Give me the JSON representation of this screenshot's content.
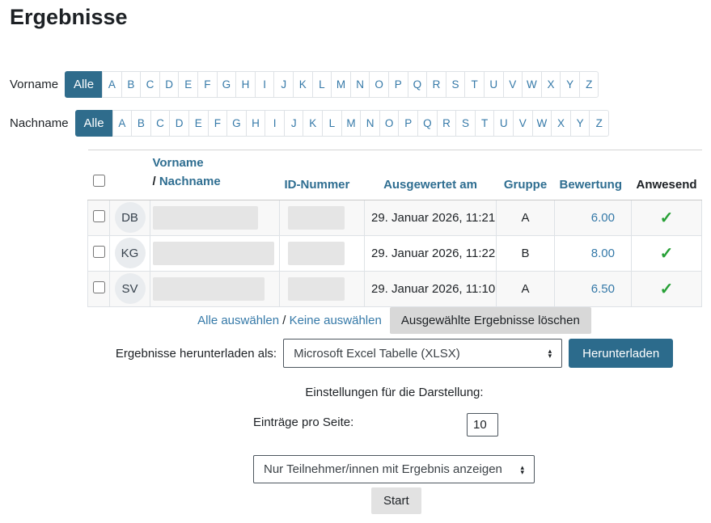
{
  "page": {
    "title": "Ergebnisse"
  },
  "colors": {
    "accent_teal": "#2f6c8c",
    "header_link": "#2f6e91",
    "link_blue": "#3579a8",
    "check_green": "#27a036",
    "row_stripe": "#f8f8f8",
    "button_gray": "#d8d8d8"
  },
  "filters": {
    "vorname_label": "Vorname",
    "nachname_label": "Nachname",
    "all_label": "Alle",
    "letters": [
      "A",
      "B",
      "C",
      "D",
      "E",
      "F",
      "G",
      "H",
      "I",
      "J",
      "K",
      "L",
      "M",
      "N",
      "O",
      "P",
      "Q",
      "R",
      "S",
      "T",
      "U",
      "V",
      "W",
      "X",
      "Y",
      "Z"
    ]
  },
  "table": {
    "header": {
      "name_line1": "Vorname",
      "slash": "/",
      "name_line2": "Nachname",
      "id": "ID-Nummer",
      "graded": "Ausgewertet am",
      "group": "Gruppe",
      "grade": "Bewertung",
      "present": "Anwesend"
    },
    "rows": [
      {
        "initials": "DB",
        "graded": "29. Januar 2026, 11:21",
        "group": "A",
        "grade": "6.00",
        "present": "✓"
      },
      {
        "initials": "KG",
        "graded": "29. Januar 2026, 11:22",
        "group": "B",
        "grade": "8.00",
        "present": "✓"
      },
      {
        "initials": "SV",
        "graded": "29. Januar 2026, 11:10",
        "group": "A",
        "grade": "6.50",
        "present": "✓"
      }
    ]
  },
  "actions": {
    "select_all": "Alle auswählen",
    "separator": "/",
    "deselect_all": "Keine auswählen",
    "delete_selected": "Ausgewählte Ergebnisse löschen",
    "download_label": "Ergebnisse herunterladen als:",
    "download_format": "Microsoft Excel Tabelle (XLSX)",
    "download_button": "Herunterladen"
  },
  "settings": {
    "heading": "Einstellungen für die Darstellung:",
    "page_size_label": "Einträge pro Seite:",
    "page_size_value": "10",
    "show_filter": "Nur Teilnehmer/innen mit Ergebnis anzeigen",
    "start_button": "Start"
  },
  "icons": {
    "select_arrow_up": "▴",
    "select_arrow_down": "▾"
  }
}
